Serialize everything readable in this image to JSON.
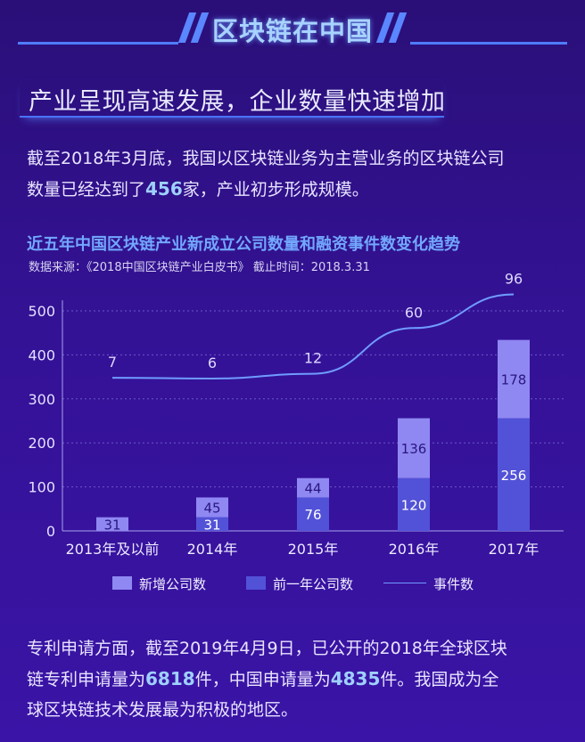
{
  "header": {
    "title": "区块链在中国"
  },
  "section": {
    "subtitle": "产业呈现高速发展，企业数量快速增加"
  },
  "intro": {
    "line1": "截至2018年3月底，我国以区块链业务为主营业务的区块链公司",
    "line2_pre": "数量已经达到了",
    "line2_num": "456",
    "line2_post": "家，产业初步形成规模。"
  },
  "chart_data": {
    "type": "bar",
    "title": "近五年中国区块链产业新成立公司数量和融资事件数变化趋势",
    "subtitle": "数据来源：《2018中国区块链产业白皮书》  截止时间：2018.3.31",
    "categories": [
      "2013年及以前",
      "2014年",
      "2015年",
      "2016年",
      "2017年"
    ],
    "series": [
      {
        "name": "新增公司数",
        "values": [
          31,
          45,
          44,
          136,
          178
        ],
        "color": "#8f88f2"
      },
      {
        "name": "前一年公司数",
        "values": [
          null,
          31,
          76,
          120,
          256
        ],
        "color": "#5252d8"
      },
      {
        "name": "事件数",
        "type": "line",
        "values": [
          7,
          6,
          12,
          60,
          96
        ],
        "color": "#6f9cff"
      }
    ],
    "stacked": true,
    "yticks": [
      0,
      100,
      200,
      300,
      400,
      500
    ],
    "ylim": [
      0,
      520
    ],
    "grid": true,
    "legend": "bottom"
  },
  "footer": {
    "line1": "专利申请方面，截至2019年4月9日，已公开的2018年全球区块",
    "line2_pre": "链专利申请量为",
    "line2_num1": "6818",
    "line2_mid": "件，中国申请量为",
    "line2_num2": "4835",
    "line2_post": "件。我国成为全",
    "line3": "球区块链技术发展最为积极的地区。"
  }
}
